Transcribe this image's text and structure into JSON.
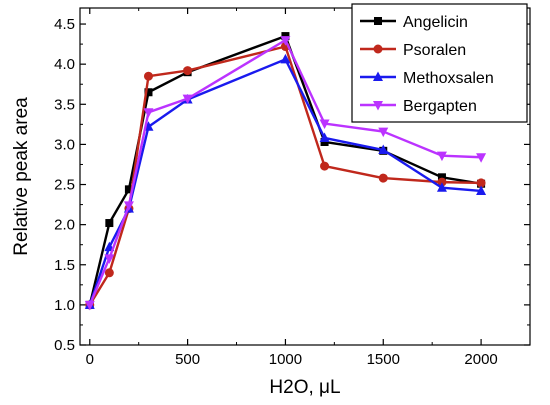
{
  "chart_data": {
    "type": "line",
    "xlabel": "H2O, μL",
    "ylabel": "Relative peak area",
    "xlim": [
      -50,
      2250
    ],
    "ylim": [
      0.5,
      4.7
    ],
    "x_ticks": [
      0,
      500,
      1000,
      1500,
      2000
    ],
    "y_ticks": [
      0.5,
      1.0,
      1.5,
      2.0,
      2.5,
      3.0,
      3.5,
      4.0,
      4.5
    ],
    "x_tick_labels": [
      "0",
      "500",
      "1000",
      "1500",
      "2000"
    ],
    "y_tick_labels": [
      "0.5",
      "1.0",
      "1.5",
      "2.0",
      "2.5",
      "3.0",
      "3.5",
      "4.0",
      "4.5"
    ],
    "legend_position": "top-right",
    "grid": false,
    "x": [
      0,
      100,
      200,
      300,
      500,
      1000,
      1200,
      1500,
      1800,
      2000
    ],
    "series": [
      {
        "name": "Angelicin",
        "color": "#000000",
        "marker": "square",
        "values": [
          1.0,
          2.02,
          2.44,
          3.65,
          3.9,
          4.35,
          3.03,
          2.92,
          2.59,
          2.51
        ]
      },
      {
        "name": "Psoralen",
        "color": "#c0281c",
        "marker": "circle",
        "values": [
          1.0,
          1.4,
          2.2,
          3.85,
          3.92,
          4.22,
          2.73,
          2.58,
          2.53,
          2.52
        ]
      },
      {
        "name": "Methoxsalen",
        "color": "#1a1aee",
        "marker": "triangle-up",
        "values": [
          1.0,
          1.72,
          2.2,
          3.22,
          3.56,
          4.06,
          3.08,
          2.93,
          2.46,
          2.42
        ]
      },
      {
        "name": "Bergapten",
        "color": "#bb33ff",
        "marker": "triangle-down",
        "values": [
          1.0,
          1.58,
          2.24,
          3.4,
          3.57,
          4.3,
          3.26,
          3.16,
          2.86,
          2.84
        ]
      }
    ]
  }
}
